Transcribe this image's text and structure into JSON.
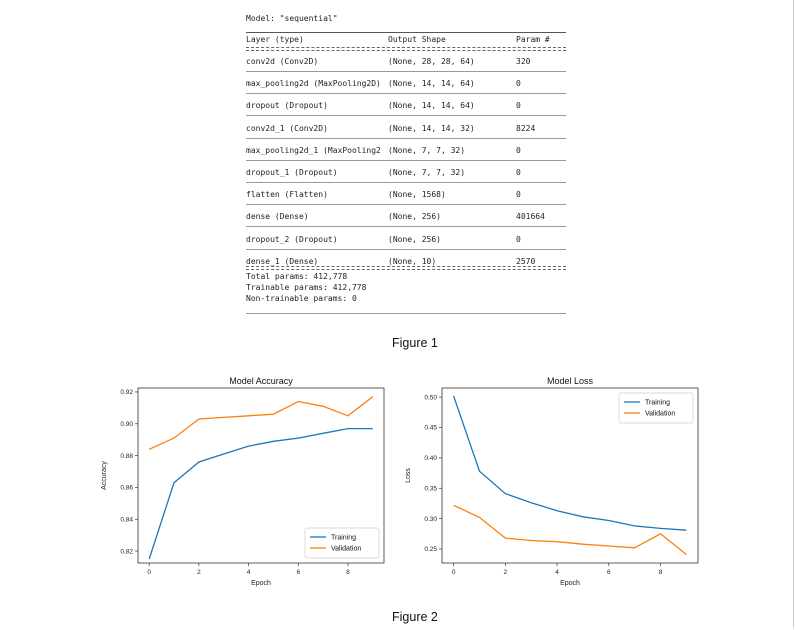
{
  "model_summary": {
    "title": "Model: \"sequential\"",
    "headers": {
      "layer": "Layer (type)",
      "shape": "Output Shape",
      "params": "Param #"
    },
    "rows": [
      {
        "layer": "conv2d (Conv2D)",
        "shape": "(None, 28, 28, 64)",
        "params": "320"
      },
      {
        "layer": "max_pooling2d (MaxPooling2D)",
        "shape": "(None, 14, 14, 64)",
        "params": "0"
      },
      {
        "layer": "dropout (Dropout)",
        "shape": "(None, 14, 14, 64)",
        "params": "0"
      },
      {
        "layer": "conv2d_1 (Conv2D)",
        "shape": "(None, 14, 14, 32)",
        "params": "8224"
      },
      {
        "layer": "max_pooling2d_1 (MaxPooling2",
        "shape": "(None, 7, 7, 32)",
        "params": "0"
      },
      {
        "layer": "dropout_1 (Dropout)",
        "shape": "(None, 7, 7, 32)",
        "params": "0"
      },
      {
        "layer": "flatten (Flatten)",
        "shape": "(None, 1568)",
        "params": "0"
      },
      {
        "layer": "dense (Dense)",
        "shape": "(None, 256)",
        "params": "401664"
      },
      {
        "layer": "dropout_2 (Dropout)",
        "shape": "(None, 256)",
        "params": "0"
      },
      {
        "layer": "dense_1 (Dense)",
        "shape": "(None, 10)",
        "params": "2570"
      }
    ],
    "total_params": "Total params: 412,778",
    "trainable_params": "Trainable params: 412,778",
    "non_trainable_params": "Non-trainable params: 0"
  },
  "figure1_caption": "Figure 1",
  "figure2_caption": "Figure 2",
  "colors": {
    "training": "#1f77b4",
    "validation": "#ff7f0e"
  },
  "chart_data": [
    {
      "type": "line",
      "title": "Model Accuracy",
      "xlabel": "Epoch",
      "ylabel": "Accuracy",
      "x": [
        0,
        1,
        2,
        3,
        4,
        5,
        6,
        7,
        8,
        9
      ],
      "xticks": [
        "0",
        "2",
        "4",
        "6",
        "8"
      ],
      "yticks": [
        "0.82",
        "0.84",
        "0.86",
        "0.88",
        "0.90",
        "0.92"
      ],
      "ylim": [
        0.8125,
        0.9225
      ],
      "xlim": [
        -0.45,
        9.45
      ],
      "legend_position": "bottom-right",
      "series": [
        {
          "name": "Training",
          "values": [
            0.815,
            0.863,
            0.876,
            0.881,
            0.886,
            0.889,
            0.891,
            0.894,
            0.897,
            0.897
          ]
        },
        {
          "name": "Validation",
          "values": [
            0.884,
            0.891,
            0.903,
            0.904,
            0.905,
            0.906,
            0.914,
            0.911,
            0.905,
            0.917
          ]
        }
      ]
    },
    {
      "type": "line",
      "title": "Model Loss",
      "xlabel": "Epoch",
      "ylabel": "Loss",
      "x": [
        0,
        1,
        2,
        3,
        4,
        5,
        6,
        7,
        8,
        9
      ],
      "xticks": [
        "0",
        "2",
        "4",
        "6",
        "8"
      ],
      "yticks": [
        "0.25",
        "0.30",
        "0.35",
        "0.40",
        "0.45",
        "0.50"
      ],
      "ylim": [
        0.227,
        0.515
      ],
      "xlim": [
        -0.45,
        9.45
      ],
      "legend_position": "top-right",
      "series": [
        {
          "name": "Training",
          "values": [
            0.502,
            0.378,
            0.341,
            0.326,
            0.313,
            0.303,
            0.297,
            0.288,
            0.284,
            0.281
          ]
        },
        {
          "name": "Validation",
          "values": [
            0.322,
            0.302,
            0.268,
            0.264,
            0.262,
            0.258,
            0.255,
            0.252,
            0.275,
            0.241
          ]
        }
      ]
    }
  ]
}
